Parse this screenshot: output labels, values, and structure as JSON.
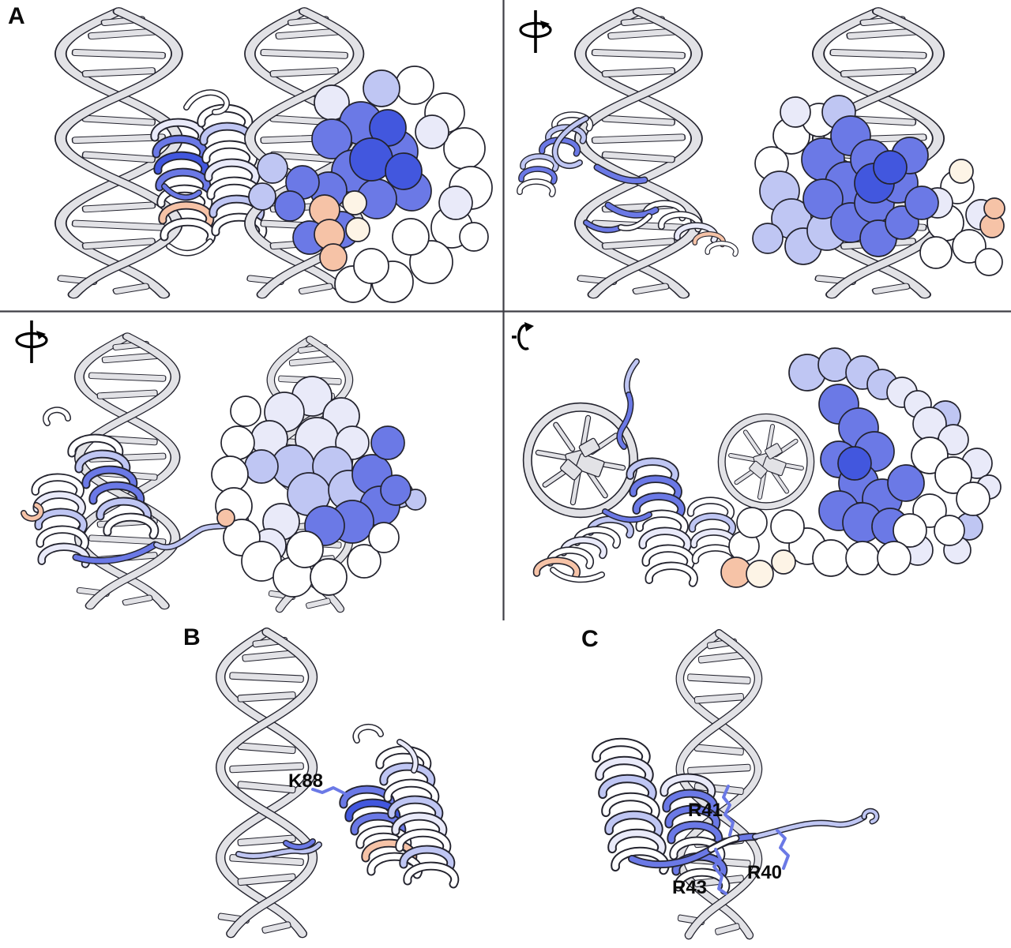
{
  "figure_labels": {
    "panel_a": "A",
    "panel_b": "B",
    "panel_c": "C"
  },
  "residue_labels": {
    "k88": "K88",
    "r41": "R41",
    "r40": "R40",
    "r43": "R43"
  },
  "rotation_icons": {
    "top_right_panel": "rotate-about-vertical-axis",
    "mid_left_panel": "rotate-about-vertical-axis",
    "mid_right_panel": "rotate-about-horizontal-axis"
  },
  "palette": {
    "outline": "#23232e",
    "dna": "#e2e2e6",
    "white": "#ffffff",
    "lav1": "#e9eaf9",
    "lav2": "#bfc6f3",
    "blue": "#6b79e6",
    "deepblue": "#4257de",
    "salmon": "#f6c3a7",
    "cream": "#fdf4e6",
    "divider": "#3f3f46",
    "label": "#0a0a0a"
  }
}
